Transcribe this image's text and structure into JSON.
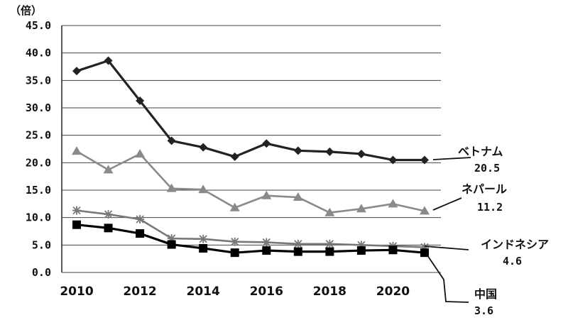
{
  "chart_data": {
    "type": "line",
    "ylabel": "（倍）",
    "ylim": [
      0,
      45
    ],
    "yticks": [
      "0.0",
      "5.0",
      "10.0",
      "15.0",
      "20.0",
      "25.0",
      "30.0",
      "35.0",
      "40.0",
      "45.0"
    ],
    "xlim": [
      2010,
      2021
    ],
    "xticks": [
      "2010",
      "2012",
      "2014",
      "2016",
      "2018",
      "2020"
    ],
    "grid": "horizontal",
    "x": [
      2010,
      2011,
      2012,
      2013,
      2014,
      2015,
      2016,
      2017,
      2018,
      2019,
      2020,
      2021
    ],
    "series": [
      {
        "name": "ベトナム",
        "end_label": "20.5",
        "color": "#222222",
        "marker": "diamond",
        "values": [
          36.7,
          38.6,
          31.3,
          24.0,
          22.8,
          21.1,
          23.5,
          22.2,
          22.0,
          21.6,
          20.5,
          20.5
        ]
      },
      {
        "name": "ネパール",
        "end_label": "11.2",
        "color": "#8a8a8a",
        "marker": "triangle",
        "values": [
          22.1,
          18.7,
          21.6,
          15.3,
          15.1,
          11.8,
          14.0,
          13.7,
          10.9,
          11.6,
          12.5,
          11.2
        ]
      },
      {
        "name": "インドネシア",
        "end_label": "4.6",
        "color": "#777777",
        "marker": "asterisk",
        "values": [
          11.3,
          10.6,
          9.7,
          6.2,
          6.1,
          5.6,
          5.5,
          5.2,
          5.2,
          5.0,
          4.8,
          4.6
        ]
      },
      {
        "name": "中国",
        "end_label": "3.6",
        "color": "#000000",
        "marker": "square",
        "values": [
          8.7,
          8.1,
          7.1,
          5.1,
          4.4,
          3.6,
          4.0,
          3.8,
          3.8,
          4.0,
          4.1,
          3.6
        ]
      }
    ]
  }
}
